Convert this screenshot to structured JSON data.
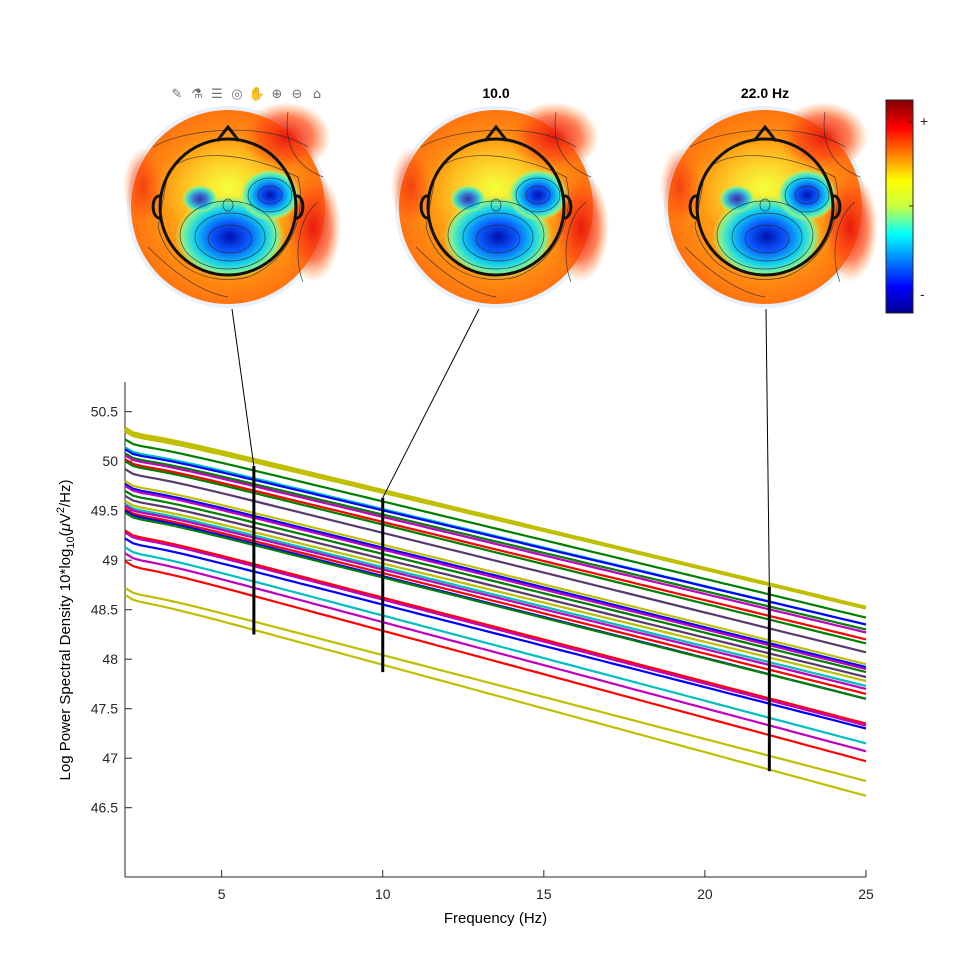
{
  "toolbar": {
    "icons": [
      "brush-icon",
      "data-tip-icon",
      "legend-icon",
      "rotate-icon",
      "pan-icon",
      "zoom-in-icon",
      "zoom-out-icon",
      "home-icon"
    ],
    "glyphs": [
      "✎",
      "⚗",
      "☰",
      "◎",
      "✋",
      "⊕",
      "⊖",
      "⌂"
    ]
  },
  "topomaps": [
    {
      "title": "",
      "freq": 6
    },
    {
      "title": "10.0",
      "freq": 10
    },
    {
      "title": "22.0 Hz",
      "freq": 22
    }
  ],
  "colorbar": {
    "plus_label": "+",
    "minus_label": "-"
  },
  "chart_data": {
    "type": "line",
    "xlabel": "Frequency (Hz)",
    "ylabel_parts": [
      "Log Power Spectral Density 10*log",
      "10",
      "(",
      "μ",
      "V",
      "2",
      "/Hz)"
    ],
    "xlim": [
      2,
      25
    ],
    "ylim": [
      45.8,
      50.8
    ],
    "xticks": [
      5,
      10,
      15,
      20,
      25
    ],
    "yticks": [
      46.5,
      47,
      47.5,
      48,
      48.5,
      49,
      49.5,
      50,
      50.5
    ],
    "ytick_labels": [
      "46.5",
      "47",
      "47.5",
      "48",
      "48.5",
      "49",
      "49.5",
      "50",
      "50.5"
    ],
    "marker_lines": [
      {
        "x": 6,
        "y_min": 48.25,
        "y_max": 49.95
      },
      {
        "x": 10,
        "y_min": 47.87,
        "y_max": 49.63
      },
      {
        "x": 22,
        "y_min": 46.87,
        "y_max": 48.73
      }
    ],
    "series": [
      {
        "color": "#bfbf00",
        "y_start": 50.33,
        "y_end": 48.52,
        "width": 4
      },
      {
        "color": "#bfbf00",
        "y_start": 50.3,
        "y_end": 48.52
      },
      {
        "color": "#007f00",
        "y_start": 50.22,
        "y_end": 48.42
      },
      {
        "color": "#00bfbf",
        "y_start": 50.14,
        "y_end": 48.35
      },
      {
        "color": "#0000ff",
        "y_start": 50.12,
        "y_end": 48.35
      },
      {
        "color": "#007f00",
        "y_start": 50.08,
        "y_end": 48.3
      },
      {
        "color": "#bf00bf",
        "y_start": 50.06,
        "y_end": 48.27
      },
      {
        "color": "#ff0000",
        "y_start": 50.02,
        "y_end": 48.2
      },
      {
        "color": "#007f00",
        "y_start": 50.0,
        "y_end": 48.16
      },
      {
        "color": "#5a3a6e",
        "y_start": 49.92,
        "y_end": 48.07
      },
      {
        "color": "#bfbf00",
        "y_start": 49.8,
        "y_end": 47.95
      },
      {
        "color": "#0000ff",
        "y_start": 49.77,
        "y_end": 47.92
      },
      {
        "color": "#bf00bf",
        "y_start": 49.75,
        "y_end": 47.9
      },
      {
        "color": "#007f00",
        "y_start": 49.7,
        "y_end": 47.87
      },
      {
        "color": "#5a3a6e",
        "y_start": 49.65,
        "y_end": 47.82
      },
      {
        "color": "#bfbf00",
        "y_start": 49.6,
        "y_end": 47.78
      },
      {
        "color": "#00bfbf",
        "y_start": 49.57,
        "y_end": 47.73
      },
      {
        "color": "#bf00bf",
        "y_start": 49.55,
        "y_end": 47.7
      },
      {
        "color": "#ff0000",
        "y_start": 49.52,
        "y_end": 47.65
      },
      {
        "color": "#0000ff",
        "y_start": 49.5,
        "y_end": 47.6
      },
      {
        "color": "#007f00",
        "y_start": 49.48,
        "y_end": 47.6
      },
      {
        "color": "#ff0000",
        "y_start": 49.3,
        "y_end": 47.35
      },
      {
        "color": "#bf00bf",
        "y_start": 49.28,
        "y_end": 47.33
      },
      {
        "color": "#0000ff",
        "y_start": 49.22,
        "y_end": 47.3
      },
      {
        "color": "#00bfbf",
        "y_start": 49.13,
        "y_end": 47.15
      },
      {
        "color": "#bf00bf",
        "y_start": 49.07,
        "y_end": 47.07
      },
      {
        "color": "#ff0000",
        "y_start": 48.99,
        "y_end": 46.97
      },
      {
        "color": "#bfbf00",
        "y_start": 48.72,
        "y_end": 46.77
      },
      {
        "color": "#bfbf00",
        "y_start": 48.65,
        "y_end": 46.62
      }
    ]
  }
}
